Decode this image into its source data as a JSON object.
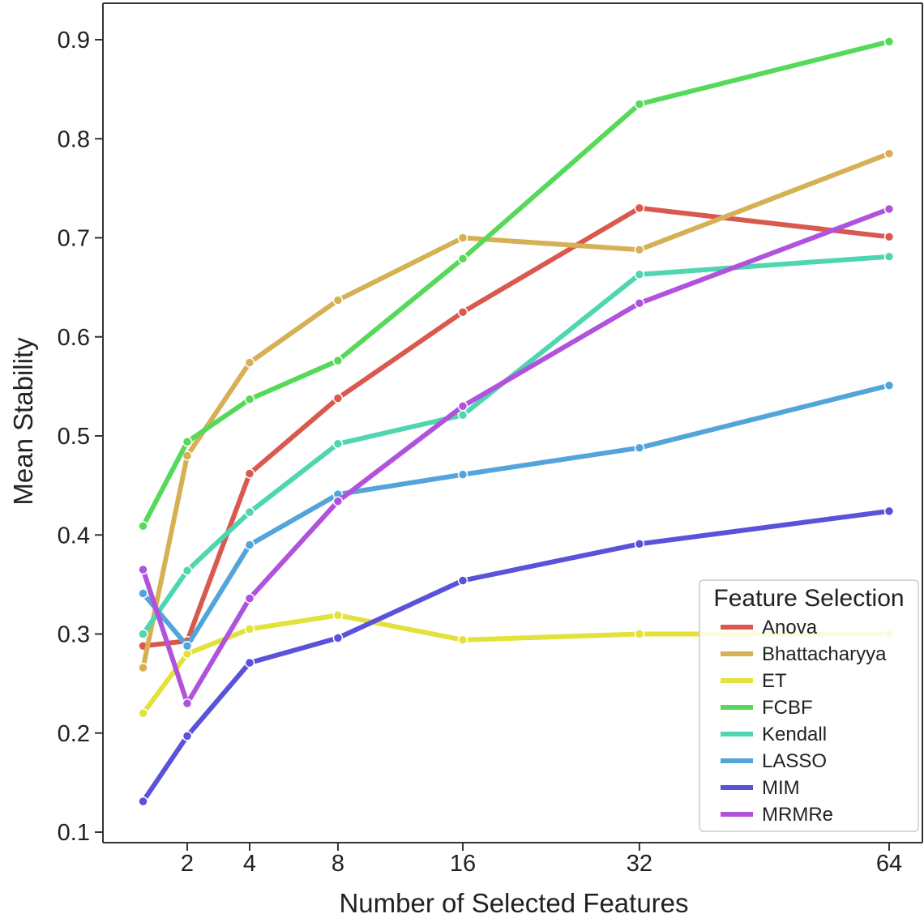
{
  "chart_data": {
    "type": "line",
    "xlabel": "Number of Selected Features",
    "ylabel": "Mean Stability",
    "x": [
      1,
      2,
      4,
      8,
      16,
      32,
      64
    ],
    "x_ticks": [
      2,
      4,
      8,
      16,
      32,
      64
    ],
    "x_tick_labels": [
      "2",
      "4",
      "8",
      "16",
      "32",
      "64"
    ],
    "x_scale": "sqrt",
    "y_ticks": [
      0.1,
      0.2,
      0.3,
      0.4,
      0.5,
      0.6,
      0.7,
      0.8,
      0.9
    ],
    "y_tick_labels": [
      "0.1",
      "0.2",
      "0.3",
      "0.4",
      "0.5",
      "0.6",
      "0.7",
      "0.8",
      "0.9"
    ],
    "grid": false,
    "legend": {
      "title": "Feature Selection",
      "placement": "bottom-right"
    },
    "series": [
      {
        "name": "Anova",
        "color": "#d9594f",
        "values": [
          0.288,
          0.293,
          0.462,
          0.538,
          0.625,
          0.73,
          0.701
        ]
      },
      {
        "name": "Bhattacharyya",
        "color": "#d6b054",
        "values": [
          0.266,
          0.48,
          0.574,
          0.637,
          0.7,
          0.688,
          0.785
        ]
      },
      {
        "name": "ET",
        "color": "#e3e23a",
        "values": [
          0.22,
          0.28,
          0.305,
          0.319,
          0.294,
          0.3,
          0.3
        ]
      },
      {
        "name": "FCBF",
        "color": "#56d95a",
        "values": [
          0.409,
          0.494,
          0.537,
          0.576,
          0.679,
          0.835,
          0.898
        ]
      },
      {
        "name": "Kendall",
        "color": "#4fd6b0",
        "values": [
          0.3,
          0.364,
          0.423,
          0.492,
          0.521,
          0.663,
          0.681
        ]
      },
      {
        "name": "LASSO",
        "color": "#52a4da",
        "values": [
          0.341,
          0.288,
          0.39,
          0.441,
          0.461,
          0.488,
          0.551
        ]
      },
      {
        "name": "MIM",
        "color": "#5a52da",
        "values": [
          0.131,
          0.197,
          0.271,
          0.296,
          0.354,
          0.391,
          0.424
        ]
      },
      {
        "name": "MRMRe",
        "color": "#b052dc",
        "values": [
          0.365,
          0.23,
          0.336,
          0.434,
          0.53,
          0.634,
          0.729
        ]
      }
    ]
  }
}
